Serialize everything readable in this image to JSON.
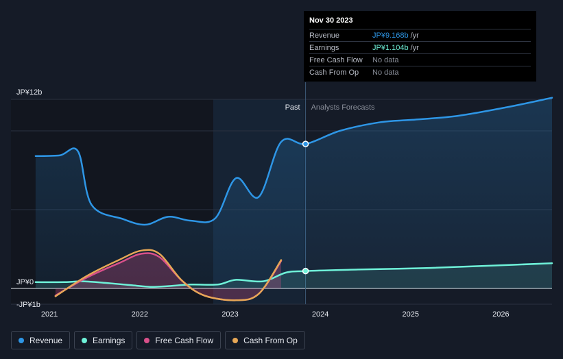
{
  "chart_data": {
    "type": "line",
    "title": "",
    "xlabel": "",
    "ylabel": "",
    "currency": "JPY",
    "y_axis": {
      "range_b": [
        -1,
        12
      ],
      "tick_labels": [
        "JP¥12b",
        "JP¥0",
        "-JP¥1b"
      ],
      "tick_values_b": [
        12,
        0,
        -1
      ]
    },
    "x_axis": {
      "range": [
        2020.9,
        2026.65
      ],
      "tick_labels": [
        "2021",
        "2022",
        "2023",
        "2024",
        "2025",
        "2026"
      ],
      "tick_values": [
        2021,
        2022,
        2023,
        2024,
        2025,
        2026
      ]
    },
    "past_divider": 2023.92,
    "past_label": "Past",
    "forecast_label": "Analysts Forecasts",
    "series": [
      {
        "name": "Revenue",
        "unit": "JP¥b",
        "color": "#2e96e6",
        "points": [
          [
            2020.93,
            8.4
          ],
          [
            2021.2,
            8.45
          ],
          [
            2021.4,
            8.7
          ],
          [
            2021.55,
            5.3
          ],
          [
            2021.9,
            4.4
          ],
          [
            2022.15,
            4.05
          ],
          [
            2022.4,
            4.55
          ],
          [
            2022.65,
            4.3
          ],
          [
            2022.92,
            4.45
          ],
          [
            2023.15,
            7.0
          ],
          [
            2023.4,
            5.8
          ],
          [
            2023.65,
            9.3
          ],
          [
            2023.92,
            9.168
          ],
          [
            2024.3,
            10.0
          ],
          [
            2024.75,
            10.55
          ],
          [
            2025.1,
            10.7
          ],
          [
            2025.6,
            10.95
          ],
          [
            2026.15,
            11.5
          ],
          [
            2026.65,
            12.1
          ]
        ]
      },
      {
        "name": "Earnings",
        "unit": "JP¥b",
        "color": "#6ff2d9",
        "points": [
          [
            2020.93,
            0.4
          ],
          [
            2021.25,
            0.4
          ],
          [
            2021.45,
            0.45
          ],
          [
            2021.7,
            0.35
          ],
          [
            2022.0,
            0.2
          ],
          [
            2022.2,
            0.1
          ],
          [
            2022.4,
            0.15
          ],
          [
            2022.65,
            0.25
          ],
          [
            2022.95,
            0.25
          ],
          [
            2023.15,
            0.55
          ],
          [
            2023.45,
            0.45
          ],
          [
            2023.7,
            1.0
          ],
          [
            2023.92,
            1.104
          ],
          [
            2024.5,
            1.2
          ],
          [
            2025.3,
            1.3
          ],
          [
            2026.0,
            1.45
          ],
          [
            2026.65,
            1.6
          ]
        ]
      },
      {
        "name": "Free Cash Flow",
        "unit": "JP¥b",
        "color": "#d9508a",
        "points": [
          [
            2021.15,
            -0.45
          ],
          [
            2021.5,
            0.7
          ],
          [
            2021.85,
            1.6
          ],
          [
            2022.1,
            2.2
          ],
          [
            2022.3,
            2.0
          ],
          [
            2022.55,
            0.5
          ],
          [
            2022.8,
            -0.45
          ],
          [
            2023.15,
            -0.75
          ],
          [
            2023.4,
            -0.35
          ],
          [
            2023.65,
            1.75
          ]
        ]
      },
      {
        "name": "Cash From Op",
        "unit": "JP¥b",
        "color": "#e6a756",
        "points": [
          [
            2021.15,
            -0.5
          ],
          [
            2021.5,
            0.8
          ],
          [
            2021.85,
            1.8
          ],
          [
            2022.1,
            2.4
          ],
          [
            2022.3,
            2.2
          ],
          [
            2022.55,
            0.5
          ],
          [
            2022.8,
            -0.45
          ],
          [
            2023.15,
            -0.75
          ],
          [
            2023.4,
            -0.35
          ],
          [
            2023.65,
            1.8
          ]
        ]
      }
    ],
    "highlight_points": [
      {
        "series": "Revenue",
        "x": 2023.92,
        "y": 9.168
      },
      {
        "series": "Earnings",
        "x": 2023.92,
        "y": 1.104
      }
    ]
  },
  "tooltip": {
    "date": "Nov 30 2023",
    "rows": [
      {
        "label": "Revenue",
        "value": "JP¥9.168b",
        "unit": "/yr"
      },
      {
        "label": "Earnings",
        "value": "JP¥1.104b",
        "unit": "/yr"
      },
      {
        "label": "Free Cash Flow",
        "value": "No data",
        "unit": ""
      },
      {
        "label": "Cash From Op",
        "value": "No data",
        "unit": ""
      }
    ]
  },
  "legend": [
    {
      "label": "Revenue",
      "color": "#2e96e6"
    },
    {
      "label": "Earnings",
      "color": "#6ff2d9"
    },
    {
      "label": "Free Cash Flow",
      "color": "#d9508a"
    },
    {
      "label": "Cash From Op",
      "color": "#e6a756"
    }
  ]
}
